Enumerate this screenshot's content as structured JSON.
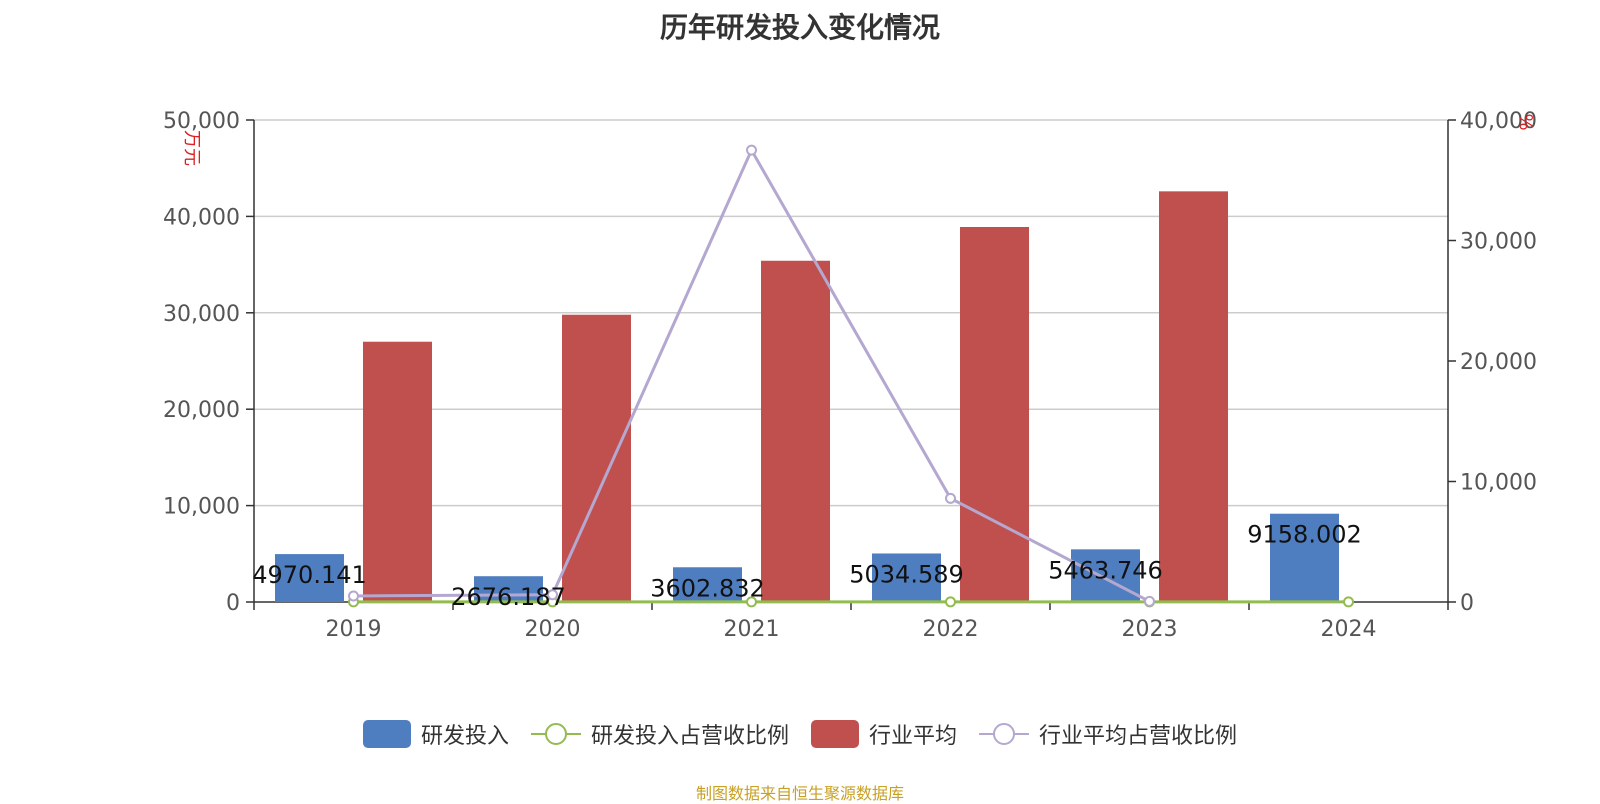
{
  "chart_data": {
    "type": "bar",
    "title": "历年研发投入变化情况",
    "categories": [
      "2019",
      "2020",
      "2021",
      "2022",
      "2023",
      "2024"
    ],
    "y_left": {
      "label": "万元",
      "ylim": [
        0,
        50000
      ],
      "ticks": [
        0,
        10000,
        20000,
        30000,
        40000,
        50000
      ],
      "tick_labels": [
        "0",
        "10,000",
        "20,000",
        "30,000",
        "40,000",
        "50,000"
      ]
    },
    "y_right": {
      "label": "%",
      "ylim": [
        0,
        40000
      ],
      "ticks": [
        0,
        10000,
        20000,
        30000,
        40000
      ],
      "tick_labels": [
        "0",
        "10,000",
        "20,000",
        "30,000",
        "40,000"
      ]
    },
    "grid": true,
    "legend_position": "bottom",
    "series": [
      {
        "name": "研发投入",
        "kind": "bar",
        "axis": "left",
        "color": "#4f7ec0",
        "values": [
          4970.141,
          2676.187,
          3602.832,
          5034.589,
          5463.746,
          9158.002
        ],
        "labels": [
          "4970.141",
          "2676.187",
          "3602.832",
          "5034.589",
          "5463.746",
          "9158.002"
        ]
      },
      {
        "name": "研发投入占营收比例",
        "kind": "line",
        "axis": "right",
        "color": "#94bb4f",
        "values": [
          10,
          10,
          10,
          10,
          10,
          10
        ]
      },
      {
        "name": "行业平均",
        "kind": "bar",
        "axis": "left",
        "color": "#c0504d",
        "values": [
          27000,
          29800,
          35400,
          38900,
          42600,
          null
        ]
      },
      {
        "name": "行业平均占营收比例",
        "kind": "line",
        "axis": "right",
        "color": "#b4a7d0",
        "values": [
          500,
          600,
          37500,
          8600,
          50,
          null
        ]
      }
    ]
  },
  "source_note": "制图数据来自恒生聚源数据库"
}
